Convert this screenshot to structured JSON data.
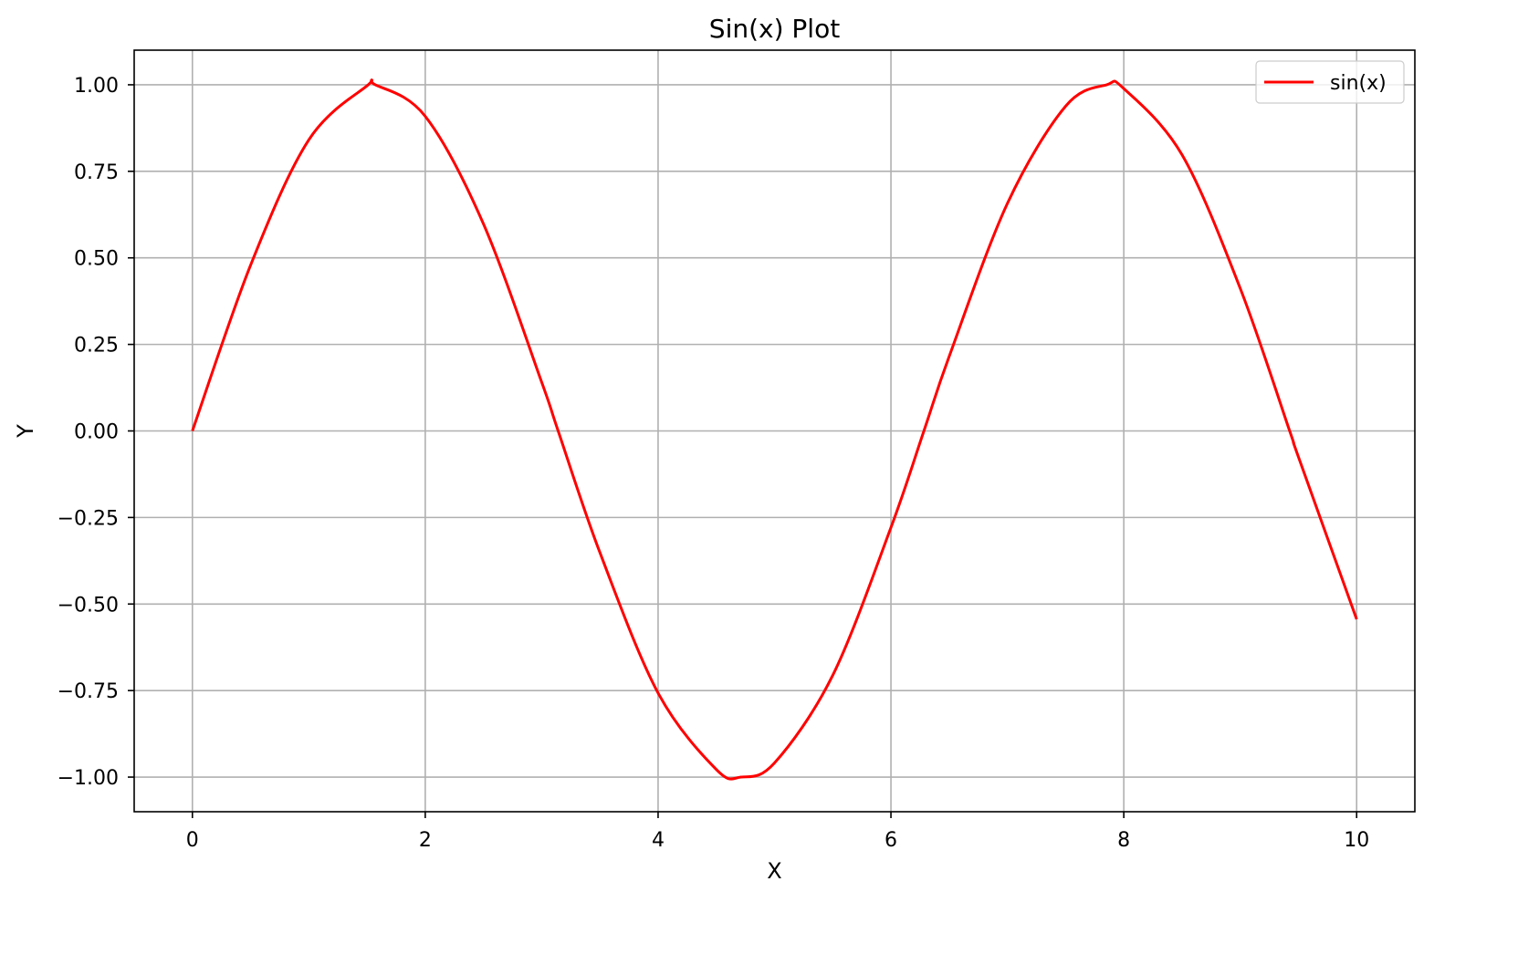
{
  "chart_data": {
    "type": "line",
    "title": "Sin(x) Plot",
    "xlabel": "X",
    "ylabel": "Y",
    "xlim": [
      -0.5,
      10.5
    ],
    "ylim": [
      -1.1,
      1.1
    ],
    "grid": true,
    "legend_position": "top-right",
    "xticks": [
      0,
      2,
      4,
      6,
      8,
      10
    ],
    "xtick_labels": [
      "0",
      "2",
      "4",
      "6",
      "8",
      "10"
    ],
    "yticks": [
      1.0,
      0.75,
      0.5,
      0.25,
      0.0,
      -0.25,
      -0.5,
      -0.75,
      -1.0
    ],
    "ytick_labels": [
      "1.00",
      "0.75",
      "0.50",
      "0.25",
      "0.00",
      "−0.25",
      "−0.50",
      "−0.75",
      "−1.00"
    ],
    "series": [
      {
        "name": "sin(x)",
        "color": "#ff0000",
        "x": [
          0.0,
          0.5,
          1.0,
          1.5,
          1.5708,
          2.0,
          2.5,
          3.0,
          3.1416,
          3.5,
          4.0,
          4.5,
          4.7124,
          5.0,
          5.5,
          6.0,
          6.2832,
          6.5,
          7.0,
          7.5,
          7.854,
          8.0,
          8.5,
          9.0,
          9.4248,
          9.5,
          10.0
        ],
        "y": [
          0.0,
          0.479,
          0.841,
          0.997,
          1.0,
          0.909,
          0.598,
          0.141,
          0.0,
          -0.351,
          -0.757,
          -0.978,
          -1.0,
          -0.959,
          -0.706,
          -0.279,
          0.0,
          0.215,
          0.657,
          0.938,
          1.0,
          0.989,
          0.798,
          0.412,
          0.0,
          -0.075,
          -0.544
        ]
      }
    ]
  }
}
